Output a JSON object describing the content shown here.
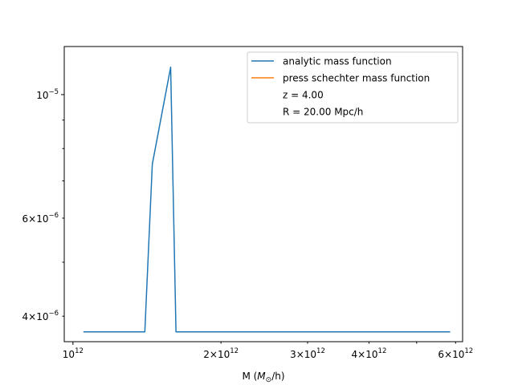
{
  "chart_data": {
    "type": "line",
    "xscale": "log",
    "yscale": "log",
    "xlim": [
      960000000000,
      6200000000000
    ],
    "ylim": [
      3.6e-06,
      1.22e-05
    ],
    "xlabel": "M ($M_\\odot$/h)",
    "ylabel": "",
    "x_ticks": [
      {
        "value": 1000000000000,
        "mantissa": "",
        "exponent": "12",
        "major": true
      },
      {
        "value": 2000000000000,
        "mantissa": "2",
        "exponent": "12",
        "major": false
      },
      {
        "value": 3000000000000,
        "mantissa": "3",
        "exponent": "12",
        "major": false
      },
      {
        "value": 4000000000000,
        "mantissa": "4",
        "exponent": "12",
        "major": false
      },
      {
        "value": 6000000000000,
        "mantissa": "6",
        "exponent": "12",
        "major": false
      }
    ],
    "x_minor_ticks": [
      5000000000000
    ],
    "y_ticks": [
      {
        "value": 1e-05,
        "mantissa": "",
        "exponent": "−5",
        "major": true
      },
      {
        "value": 6e-06,
        "mantissa": "6",
        "exponent": "−6",
        "major": false
      },
      {
        "value": 4e-06,
        "mantissa": "4",
        "exponent": "−6",
        "major": false
      }
    ],
    "y_minor_ticks": [
      9e-06,
      8e-06,
      7e-06,
      5e-06
    ],
    "grid": false,
    "legend_position": "top-right",
    "series": [
      {
        "name": "analytic mass function",
        "color": "#1f77b4",
        "x": [
          1050000000000,
          1400000000000,
          1450000000000,
          1580000000000,
          1620000000000,
          5850000000000
        ],
        "y": [
          3.75e-06,
          3.75e-06,
          7.5e-06,
          1.12e-05,
          3.75e-06,
          3.75e-06
        ]
      },
      {
        "name": "press schechter mass function",
        "color": "#ff7f0e",
        "x": [],
        "y": []
      }
    ],
    "legend_extra": [
      "z = 4.00",
      "R = 20.00 Mpc/h"
    ]
  }
}
